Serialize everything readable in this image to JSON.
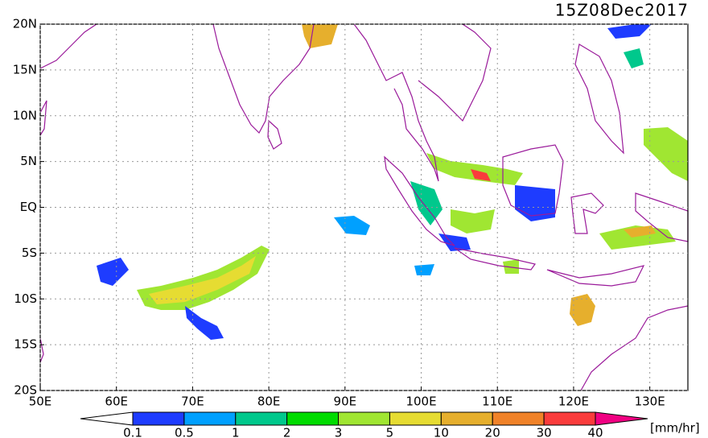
{
  "title": "15Z08Dec2017",
  "map": {
    "lon_ticks": [
      {
        "value": 50,
        "label": "50E"
      },
      {
        "value": 60,
        "label": "60E"
      },
      {
        "value": 70,
        "label": "70E"
      },
      {
        "value": 80,
        "label": "80E"
      },
      {
        "value": 90,
        "label": "90E"
      },
      {
        "value": 100,
        "label": "100E"
      },
      {
        "value": 110,
        "label": "110E"
      },
      {
        "value": 120,
        "label": "120E"
      },
      {
        "value": 130,
        "label": "130E"
      }
    ],
    "lat_ticks": [
      {
        "value": 20,
        "label": "20N"
      },
      {
        "value": 15,
        "label": "15N"
      },
      {
        "value": 10,
        "label": "10N"
      },
      {
        "value": 5,
        "label": "5N"
      },
      {
        "value": 0,
        "label": "EQ"
      },
      {
        "value": -5,
        "label": "5S"
      },
      {
        "value": -10,
        "label": "10S"
      },
      {
        "value": -15,
        "label": "15S"
      },
      {
        "value": -20,
        "label": "20S"
      }
    ],
    "lon_range": [
      50,
      135
    ],
    "lat_range": [
      -20,
      20
    ],
    "grid": true
  },
  "colorbar": {
    "levels": [
      0.1,
      0.5,
      1,
      2,
      3,
      5,
      10,
      20,
      30,
      40
    ],
    "colors": [
      "#1e3cff",
      "#00a0ff",
      "#00c88c",
      "#00dc00",
      "#a0e632",
      "#e6dc32",
      "#e6af2d",
      "#f08228",
      "#fa3c3c"
    ],
    "under_color": "#ffffff",
    "over_color": "#f00082",
    "unit": "[mm/hr]"
  }
}
